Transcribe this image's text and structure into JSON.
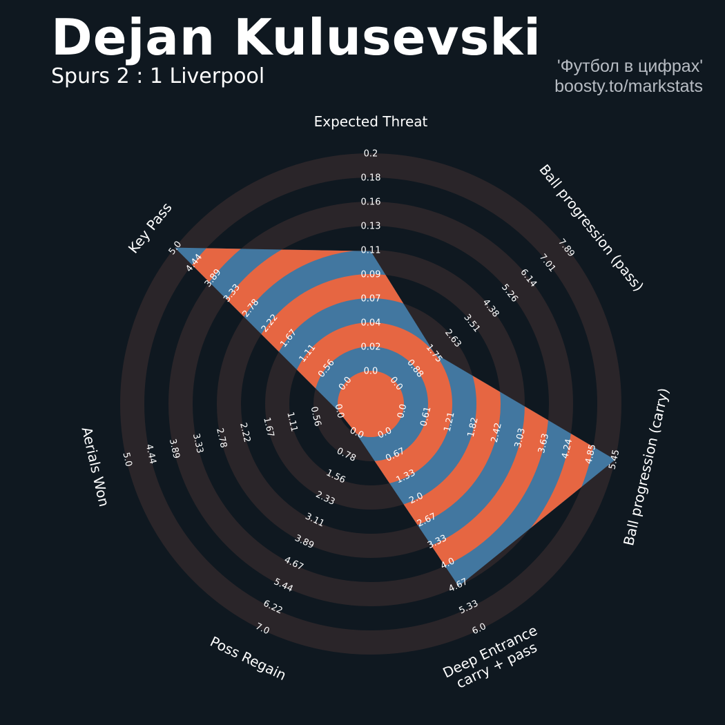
{
  "header": {
    "title": "Dejan Kulusevski",
    "subtitle": "Spurs 2 : 1 Liverpool",
    "credit_line1": "'Футбол в цифрах'",
    "credit_line2": "boosty.to/markstats"
  },
  "colors": {
    "background": "#0f1820",
    "grid_ring": "#2a2529",
    "series_blue": "#4277a0",
    "series_orange": "#e66642",
    "text": "#ffffff",
    "credit": "#b7bcc3"
  },
  "chart_data": {
    "type": "radar",
    "params": [
      {
        "label": "Expected Threat",
        "ticks": [
          "0.0",
          "0.02",
          "0.04",
          "0.07",
          "0.09",
          "0.11",
          "0.13",
          "0.16",
          "0.18",
          "0.2"
        ],
        "min": 0.0,
        "max": 0.2,
        "value": 0.11
      },
      {
        "label": "Ball progression (pass)",
        "ticks": [
          "0.0",
          "0.88",
          "1.75",
          "2.63",
          "3.51",
          "4.38",
          "5.26",
          "6.14",
          "7.01",
          "7.89"
        ],
        "min": 0.0,
        "max": 7.89,
        "value": 1.75
      },
      {
        "label": "Ball progression (carry)",
        "ticks": [
          "0.0",
          "0.61",
          "1.21",
          "1.82",
          "2.42",
          "3.03",
          "3.63",
          "4.24",
          "4.85",
          "5.45"
        ],
        "min": 0.0,
        "max": 5.45,
        "value": 5.45
      },
      {
        "label": "Deep Entrance\ncarry + pass",
        "ticks": [
          "0.0",
          "0.67",
          "1.33",
          "2.0",
          "2.67",
          "3.33",
          "4.0",
          "4.67",
          "5.33",
          "6.0"
        ],
        "min": 0.0,
        "max": 6.0,
        "value": 4.67
      },
      {
        "label": "Poss Regain",
        "ticks": [
          "0.0",
          "0.78",
          "1.56",
          "2.33",
          "3.11",
          "3.89",
          "4.67",
          "5.44",
          "6.22",
          "7.0"
        ],
        "min": 0.0,
        "max": 7.0,
        "value": 0.0
      },
      {
        "label": "Aerials Won",
        "ticks": [
          "0.0",
          "0.56",
          "1.11",
          "1.67",
          "2.22",
          "2.78",
          "3.33",
          "3.89",
          "4.44",
          "5.0"
        ],
        "min": 0.0,
        "max": 5.0,
        "value": 0.0
      },
      {
        "label": "Key Pass",
        "ticks": [
          "0.0",
          "0.56",
          "1.11",
          "1.67",
          "2.22",
          "2.78",
          "3.33",
          "3.89",
          "4.44",
          "5.0"
        ],
        "min": 0.0,
        "max": 5.0,
        "value": 5.0
      }
    ]
  }
}
